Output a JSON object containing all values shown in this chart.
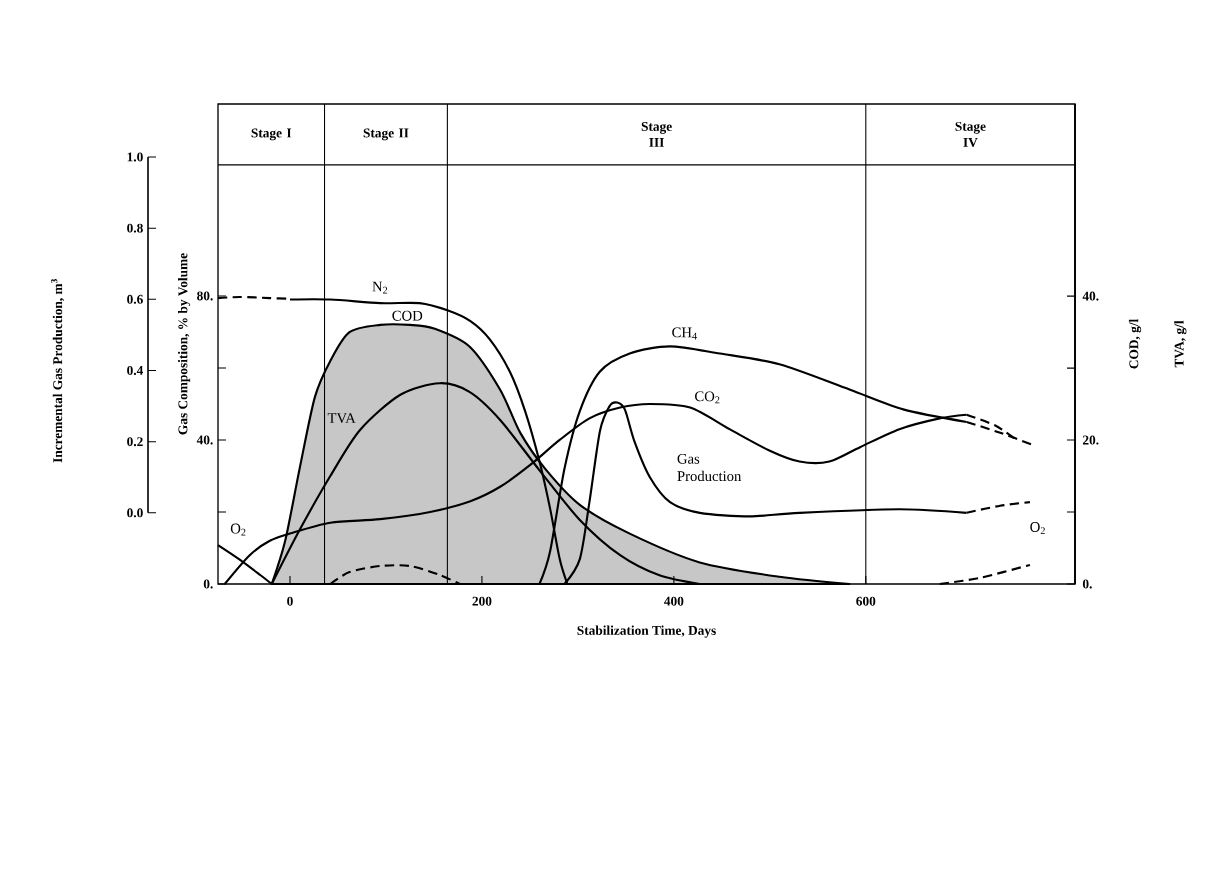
{
  "chart_data": {
    "type": "line",
    "xlabel": "Stabilization Time, Days",
    "ylabel": "Gas Composition, % by Volume",
    "y2label": "COD, g/l",
    "y3label": "Incremental Gas Production, m$^{3}$",
    "annotations": [
      "TVA, g/l",
      "Stage I",
      "Stage II",
      "Stage III",
      "Stage IV"
    ],
    "xlim": [
      -75,
      818
    ],
    "xticks": [
      0,
      200,
      400,
      600
    ],
    "ylim": [
      0,
      133.3
    ],
    "yticks": [
      {
        "value": 0,
        "label": "0."
      },
      {
        "value": 20,
        "label": null
      },
      {
        "value": 40,
        "label": "40."
      },
      {
        "value": 60,
        "label": null
      },
      {
        "value": 80,
        "label": "80."
      }
    ],
    "y2lim": [
      0,
      66.7
    ],
    "y2ticks": [
      {
        "value": 0,
        "label": "0."
      },
      {
        "value": 10,
        "label": null
      },
      {
        "value": 20,
        "label": "20."
      },
      {
        "value": 30,
        "label": null
      },
      {
        "value": 40,
        "label": "40."
      }
    ],
    "y3lim": [
      -0.2,
      1.0
    ],
    "y3ticks": [
      {
        "value": 0,
        "label": "0.0"
      },
      {
        "value": 0.2,
        "label": "0.2"
      },
      {
        "value": 0.4,
        "label": "0.4"
      },
      {
        "value": 0.6,
        "label": "0.6"
      },
      {
        "value": 0.8,
        "label": "0.8"
      },
      {
        "value": 1.0,
        "label": "1.0"
      }
    ],
    "ref_lines": [
      {
        "axis": "x",
        "value": 36
      },
      {
        "axis": "x",
        "value": 164
      },
      {
        "axis": "x",
        "value": 600
      },
      {
        "axis": "y",
        "value": 116.4
      }
    ],
    "series": [
      {
        "type": "area",
        "name": "COD",
        "axis": "y2",
        "color": "#000000",
        "x": [
          -19,
          -5,
          10,
          26,
          42,
          62,
          94,
          125,
          150,
          187,
          219,
          240,
          266,
          302,
          354,
          427,
          510,
          583
        ],
        "values": [
          0,
          6,
          16,
          26,
          31,
          35,
          36,
          36,
          35.5,
          33,
          27,
          21,
          16,
          11,
          7,
          3,
          1,
          0
        ]
      },
      {
        "name": "TVA",
        "axis": "y2",
        "color": "#000000",
        "x": [
          -19,
          10,
          42,
          73,
          115,
          156,
          187,
          219,
          260,
          302,
          344,
          385,
          427
        ],
        "values": [
          0,
          7.5,
          15,
          21.4,
          26.3,
          27.9,
          26.7,
          22.8,
          15.8,
          8.9,
          4,
          1.2,
          0
        ]
      },
      {
        "color": "#000000",
        "line_style": "dashed",
        "x": [
          -75,
          -52,
          -21,
          0
        ],
        "values": [
          79.4,
          79.7,
          79.4,
          79.2
        ]
      },
      {
        "name": "N$_{2}$",
        "color": "#000000",
        "x": [
          0,
          42,
          94,
          135,
          164,
          188,
          208,
          229,
          245,
          260,
          271,
          281,
          289
        ],
        "values": [
          79,
          79,
          78,
          78,
          76,
          73,
          68,
          59,
          48,
          34,
          21,
          7,
          0
        ]
      },
      {
        "name": "O$_{2}$",
        "color": "#000000",
        "x": [
          -75,
          -52,
          -31,
          -19
        ],
        "values": [
          10.8,
          6.7,
          2.5,
          0
        ]
      },
      {
        "name": "O$_{2}$",
        "color": "#000000",
        "line_style": "dashed",
        "x": [
          677,
          719,
          771
        ],
        "values": [
          0,
          1.7,
          5.3
        ]
      },
      {
        "color": "#000000",
        "line_style": "dashed",
        "x": [
          42,
          62,
          94,
          125,
          156,
          177
        ],
        "values": [
          0,
          3.3,
          5,
          5,
          2.5,
          0
        ]
      },
      {
        "name": "CO$_{2}$",
        "color": "#000000",
        "x": [
          -68,
          -42,
          -21,
          0,
          42,
          94,
          146,
          188,
          219,
          250,
          281,
          312,
          344,
          375,
          417,
          458,
          500,
          531,
          562,
          594,
          635,
          677,
          705
        ],
        "values": [
          0,
          8,
          12,
          14,
          17,
          18,
          20,
          23,
          27,
          33,
          40,
          46,
          49,
          50,
          49,
          43,
          37,
          34,
          34,
          38,
          43,
          46,
          47
        ]
      },
      {
        "color": "#000000",
        "line_style": "dashed",
        "x": [
          705,
          735,
          757
        ],
        "values": [
          47,
          44,
          40
        ]
      },
      {
        "name": "CH$_{4}$",
        "color": "#000000",
        "x": [
          260,
          271,
          286,
          302,
          323,
          354,
          396,
          448,
          510,
          583,
          639,
          705
        ],
        "values": [
          0,
          9,
          32,
          48,
          59,
          64,
          66,
          64,
          61,
          54,
          48.5,
          45
        ]
      },
      {
        "color": "#000000",
        "line_style": "dashed",
        "x": [
          705,
          740,
          774
        ],
        "values": [
          45,
          42,
          38.6
        ]
      },
      {
        "name": "Gas Production",
        "axis": "y3",
        "color": "#000000",
        "x": [
          286,
          302,
          312,
          323,
          333,
          341,
          349,
          359,
          375,
          396,
          427,
          479,
          531,
          635,
          705
        ],
        "values": [
          -0.2,
          -0.13,
          0.03,
          0.23,
          0.3,
          0.31,
          0.29,
          0.2,
          0.1,
          0.03,
          0,
          -0.01,
          0,
          0.01,
          0
        ]
      },
      {
        "axis": "y3",
        "color": "#000000",
        "line_style": "dashed",
        "x": [
          705,
          740,
          771
        ],
        "values": [
          0,
          0.02,
          0.03
        ]
      }
    ]
  }
}
